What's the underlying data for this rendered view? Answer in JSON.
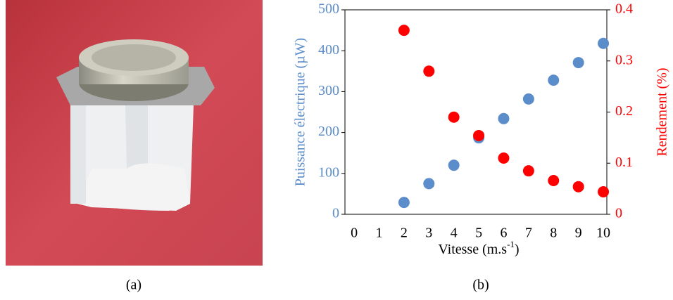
{
  "chart_data": {
    "type": "scatter",
    "xlabel": [
      "Vitesse (m.s",
      "-1",
      ")"
    ],
    "ylabel": "Puissance électrique (µW)",
    "y2label": "Rendement (%)",
    "x": [
      2,
      3,
      4,
      5,
      6,
      7,
      8,
      9,
      10
    ],
    "series": [
      {
        "color": "#5b8dcb",
        "values": [
          29,
          75,
          120,
          187,
          234,
          282,
          328,
          371,
          418
        ]
      },
      {
        "color": "#ff0000",
        "axis": "y2",
        "values": [
          0.36,
          0.28,
          0.19,
          0.154,
          0.11,
          0.085,
          0.066,
          0.054,
          0.044
        ]
      }
    ],
    "xlim": [
      -0.37,
      10.14
    ],
    "xticks": [
      0,
      1,
      2,
      3,
      4,
      5,
      6,
      7,
      8,
      9,
      10
    ],
    "ylim": [
      0,
      500
    ],
    "yticks": [
      0,
      100,
      200,
      300,
      400,
      500
    ],
    "y2lim": [
      0,
      0.4
    ],
    "y2ticks": [
      0,
      0.1,
      0.2,
      0.3,
      0.4
    ],
    "ycolor": "#5b8dcb",
    "y2color": "#ff0000"
  },
  "captions": [
    "(a)",
    "(b)"
  ]
}
